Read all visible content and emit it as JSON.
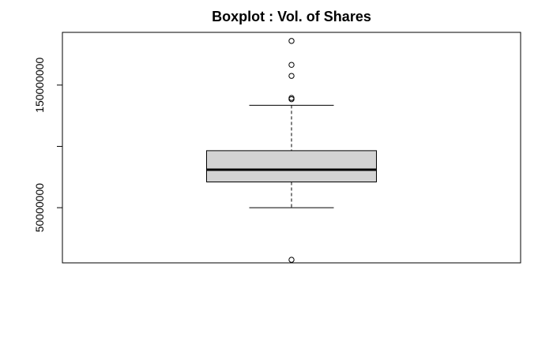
{
  "chart_data": {
    "type": "boxplot",
    "title": "Boxplot : Vol. of Shares",
    "xlabel": "",
    "ylabel": "",
    "y_ticks": [
      50000000,
      100000000,
      150000000
    ],
    "y_tick_labels": [
      "50000000",
      "",
      "150000000"
    ],
    "ylim": [
      5000000,
      193000000
    ],
    "grid": false,
    "legend": "none",
    "box": {
      "whisker_low": 50000000,
      "q1": 71000000,
      "median": 81000000,
      "q3": 96500000,
      "whisker_high": 133500000
    },
    "outliers": [
      186000000,
      166500000,
      157500000,
      139500000,
      138500000,
      7500000
    ],
    "colors": {
      "box_fill": "#d3d3d3",
      "stroke": "#000000"
    }
  }
}
